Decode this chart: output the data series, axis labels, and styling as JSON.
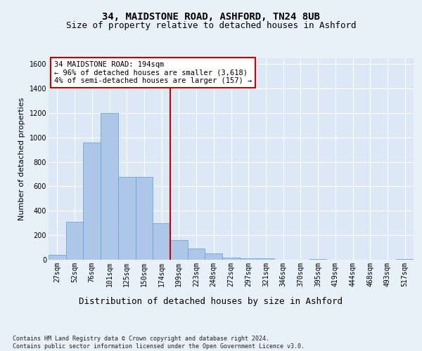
{
  "title_line1": "34, MAIDSTONE ROAD, ASHFORD, TN24 8UB",
  "title_line2": "Size of property relative to detached houses in Ashford",
  "xlabel": "Distribution of detached houses by size in Ashford",
  "ylabel": "Number of detached properties",
  "footnote": "Contains HM Land Registry data © Crown copyright and database right 2024.\nContains public sector information licensed under the Open Government Licence v3.0.",
  "bar_labels": [
    "27sqm",
    "52sqm",
    "76sqm",
    "101sqm",
    "125sqm",
    "150sqm",
    "174sqm",
    "199sqm",
    "223sqm",
    "248sqm",
    "272sqm",
    "297sqm",
    "321sqm",
    "346sqm",
    "370sqm",
    "395sqm",
    "419sqm",
    "444sqm",
    "468sqm",
    "493sqm",
    "517sqm"
  ],
  "bar_values": [
    40,
    310,
    960,
    1200,
    680,
    680,
    300,
    160,
    90,
    50,
    20,
    10,
    10,
    0,
    0,
    5,
    0,
    0,
    0,
    0,
    5
  ],
  "bar_color": "#aec6e8",
  "bar_edge_color": "#5a9fd4",
  "highlight_index": 7,
  "highlight_color": "#cc0000",
  "annotation_box_text": "34 MAIDSTONE ROAD: 194sqm\n← 96% of detached houses are smaller (3,618)\n4% of semi-detached houses are larger (157) →",
  "annotation_box_color": "#cc0000",
  "ylim": [
    0,
    1650
  ],
  "yticks": [
    0,
    200,
    400,
    600,
    800,
    1000,
    1200,
    1400,
    1600
  ],
  "bg_color": "#e8f0f8",
  "plot_bg_color": "#dce8f5",
  "grid_color": "#ffffff",
  "title_fontsize": 10,
  "subtitle_fontsize": 9,
  "ylabel_fontsize": 8,
  "xlabel_fontsize": 9,
  "tick_fontsize": 7,
  "annot_fontsize": 7.5,
  "footnote_fontsize": 6
}
